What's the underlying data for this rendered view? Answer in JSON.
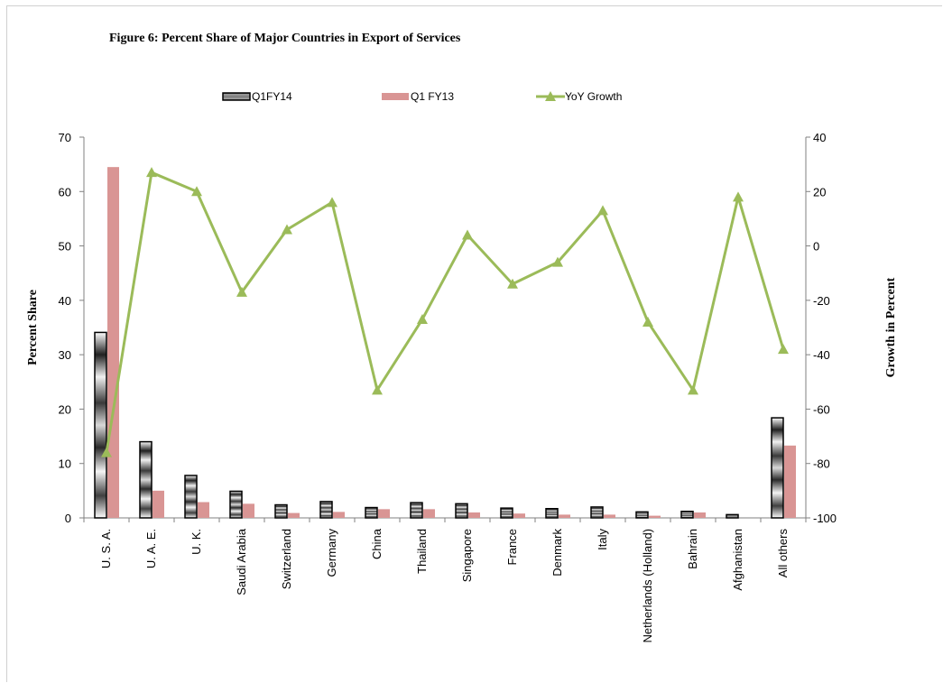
{
  "chart_data": {
    "type": "bar",
    "title": "Figure 6: Percent Share of Major Countries in Export of Services",
    "xlabel": "",
    "ylabel": "Percent Share",
    "y2label": "Growth in Percent",
    "ylim": [
      0,
      70
    ],
    "y2lim": [
      -100,
      40
    ],
    "yticks": [
      0,
      10,
      20,
      30,
      40,
      50,
      60,
      70
    ],
    "y2ticks": [
      -100,
      -80,
      -60,
      -40,
      -20,
      0,
      20,
      40
    ],
    "legend_position": "top",
    "grid": false,
    "categories": [
      "U. S. A.",
      "U. A. E.",
      "U. K.",
      "Saudi Arabia",
      "Switzerland",
      "Germany",
      "China",
      "Thailand",
      "Singapore",
      "France",
      "Denmark",
      "Italy",
      "Netherlands (Holland)",
      "Bahrain",
      "Afghanistan",
      "All others"
    ],
    "series": [
      {
        "name": "Q1FY14",
        "kind": "bar",
        "axis": "left",
        "color": "#000000",
        "values": [
          34.1,
          14.0,
          7.8,
          4.9,
          2.4,
          3.0,
          1.9,
          2.8,
          2.6,
          1.8,
          1.7,
          2.0,
          1.1,
          1.2,
          0.6,
          18.4
        ]
      },
      {
        "name": "Q1 FY13",
        "kind": "bar",
        "axis": "left",
        "color": "#d99594",
        "values": [
          64.5,
          5.0,
          2.9,
          2.6,
          0.9,
          1.1,
          1.6,
          1.6,
          1.0,
          0.8,
          0.6,
          0.6,
          0.4,
          1.0,
          0.0,
          13.3
        ]
      },
      {
        "name": "YoY Growth",
        "kind": "line",
        "axis": "right",
        "color": "#9bbb59",
        "values": [
          -76,
          27,
          20,
          -17,
          6,
          16,
          -53,
          -27,
          4,
          -14,
          -6,
          13,
          -28,
          -53,
          18,
          -38
        ]
      }
    ]
  }
}
